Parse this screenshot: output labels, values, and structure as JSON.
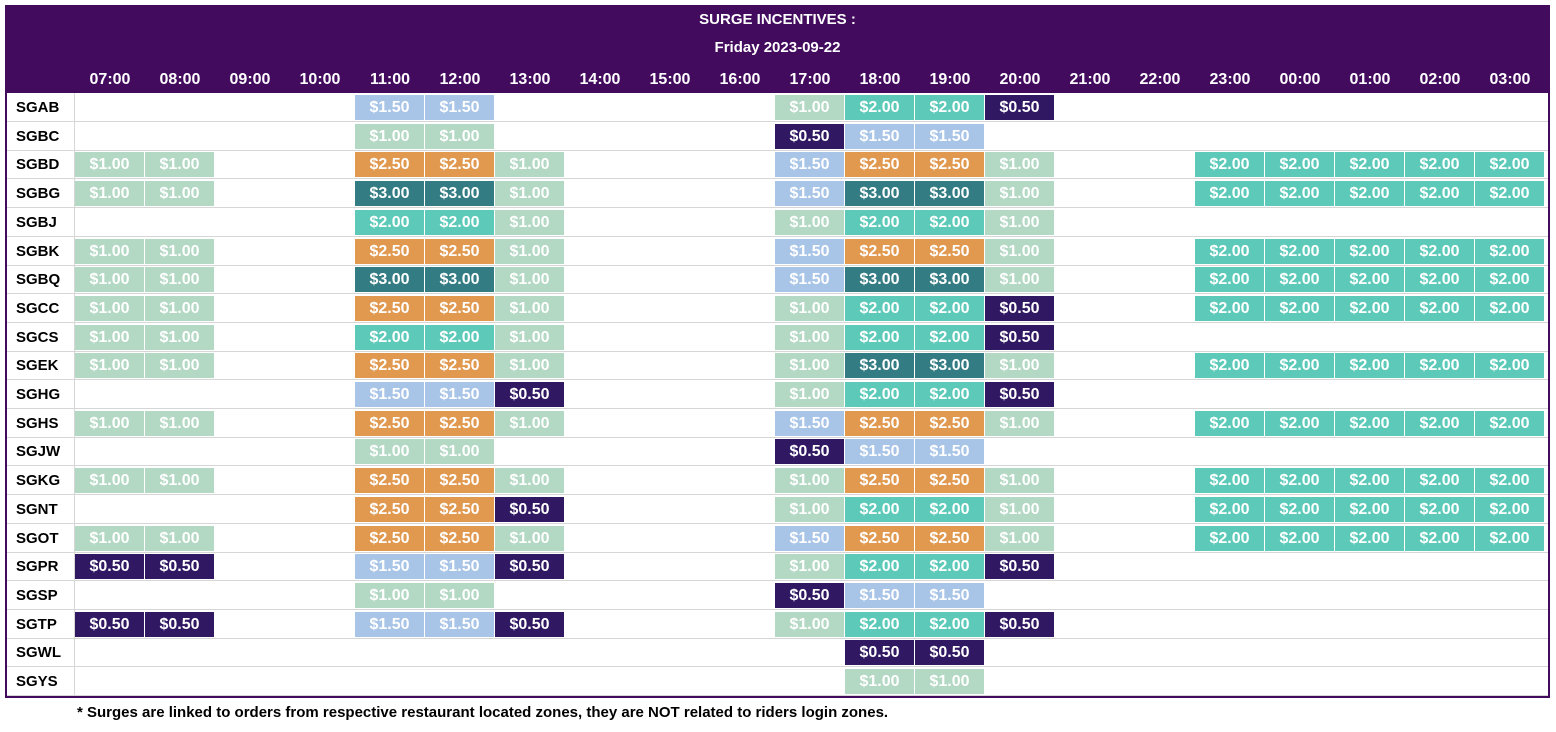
{
  "header": {
    "title": "SURGE INCENTIVES :",
    "date": "Friday 2023-09-22"
  },
  "hours": [
    "07:00",
    "08:00",
    "09:00",
    "10:00",
    "11:00",
    "12:00",
    "13:00",
    "14:00",
    "15:00",
    "16:00",
    "17:00",
    "18:00",
    "19:00",
    "20:00",
    "21:00",
    "22:00",
    "23:00",
    "00:00",
    "01:00",
    "02:00",
    "03:00"
  ],
  "colors": {
    "0.50": "#301862",
    "1.00": "#b3d8c4",
    "1.50": "#a8c4e6",
    "2.00": "#5dcab9",
    "2.50": "#e1984f",
    "3.00": "#347c83",
    "header": "#430b5e"
  },
  "rows": [
    {
      "zone": "SGAB",
      "cells": [
        "",
        "",
        "",
        "",
        "$1.50",
        "$1.50",
        "",
        "",
        "",
        "",
        "$1.00",
        "$2.00",
        "$2.00",
        "$0.50",
        "",
        "",
        "",
        "",
        "",
        "",
        ""
      ]
    },
    {
      "zone": "SGBC",
      "cells": [
        "",
        "",
        "",
        "",
        "$1.00",
        "$1.00",
        "",
        "",
        "",
        "",
        "$0.50",
        "$1.50",
        "$1.50",
        "",
        "",
        "",
        "",
        "",
        "",
        "",
        ""
      ]
    },
    {
      "zone": "SGBD",
      "cells": [
        "$1.00",
        "$1.00",
        "",
        "",
        "$2.50",
        "$2.50",
        "$1.00",
        "",
        "",
        "",
        "$1.50",
        "$2.50",
        "$2.50",
        "$1.00",
        "",
        "",
        "$2.00",
        "$2.00",
        "$2.00",
        "$2.00",
        "$2.00"
      ]
    },
    {
      "zone": "SGBG",
      "cells": [
        "$1.00",
        "$1.00",
        "",
        "",
        "$3.00",
        "$3.00",
        "$1.00",
        "",
        "",
        "",
        "$1.50",
        "$3.00",
        "$3.00",
        "$1.00",
        "",
        "",
        "$2.00",
        "$2.00",
        "$2.00",
        "$2.00",
        "$2.00"
      ]
    },
    {
      "zone": "SGBJ",
      "cells": [
        "",
        "",
        "",
        "",
        "$2.00",
        "$2.00",
        "$1.00",
        "",
        "",
        "",
        "$1.00",
        "$2.00",
        "$2.00",
        "$1.00",
        "",
        "",
        "",
        "",
        "",
        "",
        ""
      ]
    },
    {
      "zone": "SGBK",
      "cells": [
        "$1.00",
        "$1.00",
        "",
        "",
        "$2.50",
        "$2.50",
        "$1.00",
        "",
        "",
        "",
        "$1.50",
        "$2.50",
        "$2.50",
        "$1.00",
        "",
        "",
        "$2.00",
        "$2.00",
        "$2.00",
        "$2.00",
        "$2.00"
      ]
    },
    {
      "zone": "SGBQ",
      "cells": [
        "$1.00",
        "$1.00",
        "",
        "",
        "$3.00",
        "$3.00",
        "$1.00",
        "",
        "",
        "",
        "$1.50",
        "$3.00",
        "$3.00",
        "$1.00",
        "",
        "",
        "$2.00",
        "$2.00",
        "$2.00",
        "$2.00",
        "$2.00"
      ]
    },
    {
      "zone": "SGCC",
      "cells": [
        "$1.00",
        "$1.00",
        "",
        "",
        "$2.50",
        "$2.50",
        "$1.00",
        "",
        "",
        "",
        "$1.00",
        "$2.00",
        "$2.00",
        "$0.50",
        "",
        "",
        "$2.00",
        "$2.00",
        "$2.00",
        "$2.00",
        "$2.00"
      ]
    },
    {
      "zone": "SGCS",
      "cells": [
        "$1.00",
        "$1.00",
        "",
        "",
        "$2.00",
        "$2.00",
        "$1.00",
        "",
        "",
        "",
        "$1.00",
        "$2.00",
        "$2.00",
        "$0.50",
        "",
        "",
        "",
        "",
        "",
        "",
        ""
      ]
    },
    {
      "zone": "SGEK",
      "cells": [
        "$1.00",
        "$1.00",
        "",
        "",
        "$2.50",
        "$2.50",
        "$1.00",
        "",
        "",
        "",
        "$1.00",
        "$3.00",
        "$3.00",
        "$1.00",
        "",
        "",
        "$2.00",
        "$2.00",
        "$2.00",
        "$2.00",
        "$2.00"
      ]
    },
    {
      "zone": "SGHG",
      "cells": [
        "",
        "",
        "",
        "",
        "$1.50",
        "$1.50",
        "$0.50",
        "",
        "",
        "",
        "$1.00",
        "$2.00",
        "$2.00",
        "$0.50",
        "",
        "",
        "",
        "",
        "",
        "",
        ""
      ]
    },
    {
      "zone": "SGHS",
      "cells": [
        "$1.00",
        "$1.00",
        "",
        "",
        "$2.50",
        "$2.50",
        "$1.00",
        "",
        "",
        "",
        "$1.50",
        "$2.50",
        "$2.50",
        "$1.00",
        "",
        "",
        "$2.00",
        "$2.00",
        "$2.00",
        "$2.00",
        "$2.00"
      ]
    },
    {
      "zone": "SGJW",
      "cells": [
        "",
        "",
        "",
        "",
        "$1.00",
        "$1.00",
        "",
        "",
        "",
        "",
        "$0.50",
        "$1.50",
        "$1.50",
        "",
        "",
        "",
        "",
        "",
        "",
        "",
        ""
      ]
    },
    {
      "zone": "SGKG",
      "cells": [
        "$1.00",
        "$1.00",
        "",
        "",
        "$2.50",
        "$2.50",
        "$1.00",
        "",
        "",
        "",
        "$1.00",
        "$2.50",
        "$2.50",
        "$1.00",
        "",
        "",
        "$2.00",
        "$2.00",
        "$2.00",
        "$2.00",
        "$2.00"
      ]
    },
    {
      "zone": "SGNT",
      "cells": [
        "",
        "",
        "",
        "",
        "$2.50",
        "$2.50",
        "$0.50",
        "",
        "",
        "",
        "$1.00",
        "$2.00",
        "$2.00",
        "$1.00",
        "",
        "",
        "$2.00",
        "$2.00",
        "$2.00",
        "$2.00",
        "$2.00"
      ]
    },
    {
      "zone": "SGOT",
      "cells": [
        "$1.00",
        "$1.00",
        "",
        "",
        "$2.50",
        "$2.50",
        "$1.00",
        "",
        "",
        "",
        "$1.50",
        "$2.50",
        "$2.50",
        "$1.00",
        "",
        "",
        "$2.00",
        "$2.00",
        "$2.00",
        "$2.00",
        "$2.00"
      ]
    },
    {
      "zone": "SGPR",
      "cells": [
        "$0.50",
        "$0.50",
        "",
        "",
        "$1.50",
        "$1.50",
        "$0.50",
        "",
        "",
        "",
        "$1.00",
        "$2.00",
        "$2.00",
        "$0.50",
        "",
        "",
        "",
        "",
        "",
        "",
        ""
      ]
    },
    {
      "zone": "SGSP",
      "cells": [
        "",
        "",
        "",
        "",
        "$1.00",
        "$1.00",
        "",
        "",
        "",
        "",
        "$0.50",
        "$1.50",
        "$1.50",
        "",
        "",
        "",
        "",
        "",
        "",
        "",
        ""
      ]
    },
    {
      "zone": "SGTP",
      "cells": [
        "$0.50",
        "$0.50",
        "",
        "",
        "$1.50",
        "$1.50",
        "$0.50",
        "",
        "",
        "",
        "$1.00",
        "$2.00",
        "$2.00",
        "$0.50",
        "",
        "",
        "",
        "",
        "",
        "",
        ""
      ]
    },
    {
      "zone": "SGWL",
      "cells": [
        "",
        "",
        "",
        "",
        "",
        "",
        "",
        "",
        "",
        "",
        "",
        "$0.50",
        "$0.50",
        "",
        "",
        "",
        "",
        "",
        "",
        "",
        ""
      ]
    },
    {
      "zone": "SGYS",
      "cells": [
        "",
        "",
        "",
        "",
        "",
        "",
        "",
        "",
        "",
        "",
        "",
        "$1.00",
        "$1.00",
        "",
        "",
        "",
        "",
        "",
        "",
        "",
        ""
      ]
    }
  ],
  "footnote": "* Surges are linked to orders from respective restaurant located zones, they are NOT related to riders login zones."
}
